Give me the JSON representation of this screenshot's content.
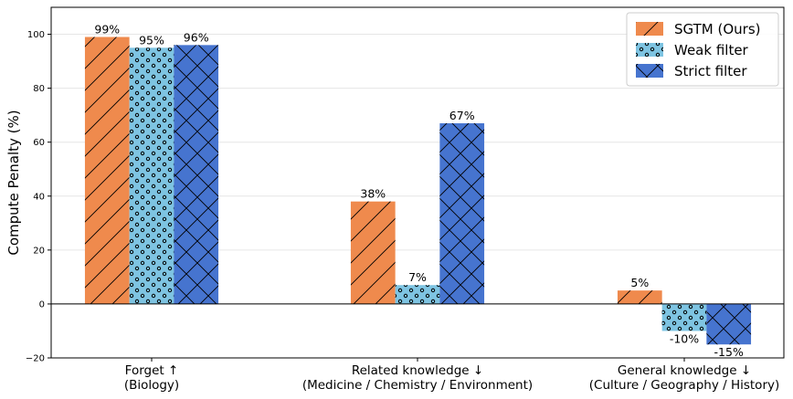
{
  "chart_data": {
    "type": "bar",
    "title": "",
    "xlabel": "",
    "ylabel": "Compute Penalty (%)",
    "ylim": [
      -20,
      110
    ],
    "yticks": [
      -20,
      0,
      20,
      40,
      60,
      80,
      100
    ],
    "ytick_labels": [
      "−20",
      "0",
      "20",
      "40",
      "60",
      "80",
      "100"
    ],
    "grid": true,
    "legend_position": "top-right",
    "categories": [
      {
        "line1": "Forget ↑",
        "line2": "(Biology)"
      },
      {
        "line1": "Related knowledge ↓",
        "line2": "(Medicine / Chemistry / Environment)"
      },
      {
        "line1": "General knowledge ↓",
        "line2": "(Culture / Geography / History)"
      }
    ],
    "series": [
      {
        "name": "SGTM (Ours)",
        "color": "#EF8A4D",
        "hatch": "diagonal",
        "values": [
          99,
          38,
          5
        ],
        "labels": [
          "99%",
          "38%",
          "5%"
        ]
      },
      {
        "name": "Weak filter",
        "color": "#7EC4E2",
        "hatch": "dots",
        "values": [
          95,
          7,
          -10
        ],
        "labels": [
          "95%",
          "7%",
          "-10%"
        ]
      },
      {
        "name": "Strict filter",
        "color": "#4674CF",
        "hatch": "crosshatch",
        "values": [
          96,
          67,
          -15
        ],
        "labels": [
          "96%",
          "67%",
          "-15%"
        ]
      }
    ]
  }
}
